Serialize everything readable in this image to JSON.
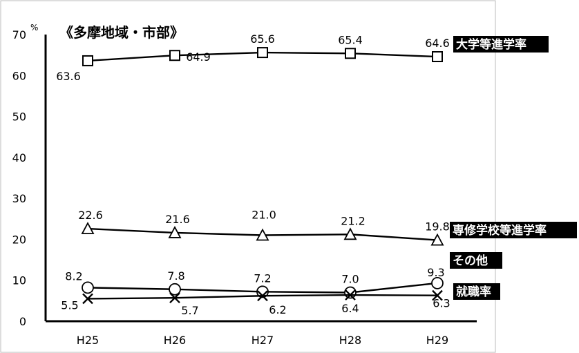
{
  "chart_data": {
    "type": "line",
    "title": "《多摩地域・市部》",
    "ylabel": "%",
    "yticks": [
      "0",
      "10",
      "20",
      "30",
      "40",
      "50",
      "60",
      "70"
    ],
    "ylim": [
      0,
      70
    ],
    "categories": [
      "H25",
      "H26",
      "H27",
      "H28",
      "H29"
    ],
    "grid": false,
    "series": [
      {
        "name": "大学等進学率",
        "marker": "square",
        "values": [
          63.6,
          64.9,
          65.6,
          65.4,
          64.6
        ],
        "labels": [
          "63.6",
          "64.9",
          "65.6",
          "65.4",
          "64.6"
        ]
      },
      {
        "name": "専修学校等進学率",
        "marker": "triangle",
        "values": [
          22.6,
          21.6,
          21.0,
          21.2,
          19.8
        ],
        "labels": [
          "22.6",
          "21.6",
          "21.0",
          "21.2",
          "19.8"
        ]
      },
      {
        "name": "その他",
        "marker": "circle",
        "values": [
          8.2,
          7.8,
          7.2,
          7.0,
          9.3
        ],
        "labels": [
          "8.2",
          "7.8",
          "7.2",
          "7.0",
          "9.3"
        ]
      },
      {
        "name": "就職率",
        "marker": "cross",
        "values": [
          5.5,
          5.7,
          6.2,
          6.4,
          6.3
        ],
        "labels": [
          "5.5",
          "5.7",
          "6.2",
          "6.4",
          "6.3"
        ]
      }
    ]
  }
}
